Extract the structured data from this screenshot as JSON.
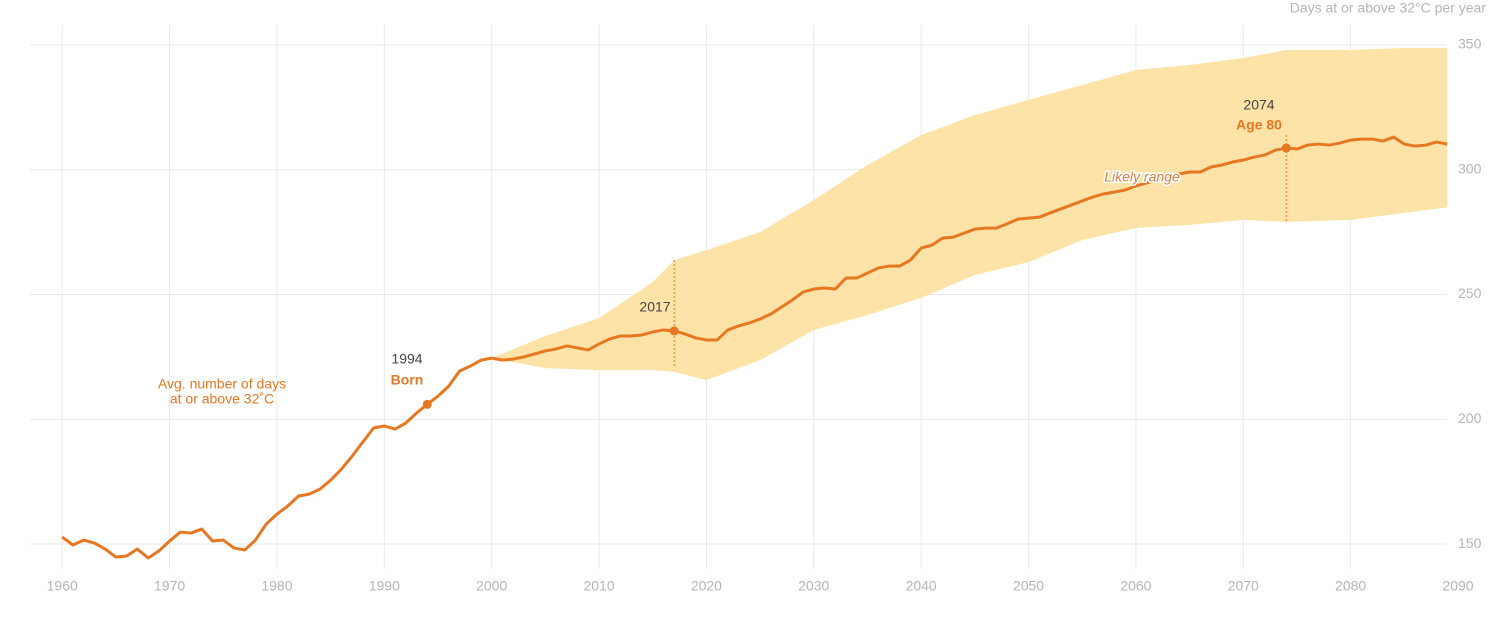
{
  "chart_data": {
    "type": "line",
    "y_axis_label": "Days at or above 32°C per year",
    "x": [
      1960,
      1961,
      1962,
      1963,
      1964,
      1965,
      1966,
      1967,
      1968,
      1969,
      1970,
      1971,
      1972,
      1973,
      1974,
      1975,
      1976,
      1977,
      1978,
      1979,
      1980,
      1981,
      1982,
      1983,
      1984,
      1985,
      1986,
      1987,
      1988,
      1989,
      1990,
      1991,
      1992,
      1993,
      1994,
      1995,
      1996,
      1997,
      1998,
      1999,
      2000,
      2001,
      2002,
      2003,
      2004,
      2005,
      2006,
      2007,
      2008,
      2009,
      2010,
      2011,
      2012,
      2013,
      2014,
      2015,
      2016,
      2017,
      2018,
      2019,
      2020,
      2021,
      2022,
      2023,
      2024,
      2025,
      2026,
      2027,
      2028,
      2029,
      2030,
      2031,
      2032,
      2033,
      2034,
      2035,
      2036,
      2037,
      2038,
      2039,
      2040,
      2041,
      2042,
      2043,
      2044,
      2045,
      2046,
      2047,
      2048,
      2049,
      2050,
      2051,
      2052,
      2053,
      2054,
      2055,
      2056,
      2057,
      2058,
      2059,
      2060,
      2061,
      2062,
      2063,
      2064,
      2065,
      2066,
      2067,
      2068,
      2069,
      2070,
      2071,
      2072,
      2073,
      2074,
      2075,
      2076,
      2077,
      2078,
      2079,
      2080,
      2081,
      2082,
      2083,
      2084,
      2085,
      2086,
      2087,
      2088,
      2089
    ],
    "series": [
      {
        "name": "Avg. number of days at or above 32°C",
        "color": "#e87722",
        "values": [
          152.8,
          149.6,
          151.6,
          150.4,
          148,
          144.8,
          145.2,
          148,
          144.4,
          147.2,
          151.2,
          154.8,
          154.4,
          156,
          151.2,
          151.6,
          148.4,
          147.6,
          151.6,
          158,
          162,
          165.2,
          169.2,
          170,
          172,
          175.6,
          180,
          185.2,
          190.9,
          196.5,
          197.3,
          196.1,
          198.5,
          202.5,
          206,
          209.3,
          213.3,
          219.3,
          221.3,
          223.7,
          224.5,
          223.7,
          224.1,
          225,
          226.2,
          227.4,
          228.2,
          229.4,
          228.6,
          227.8,
          230.2,
          232.2,
          233.4,
          233.4,
          233.8,
          235,
          235.8,
          235.4,
          234.2,
          232.6,
          231.8,
          231.8,
          235.8,
          237.4,
          238.6,
          240.2,
          242.2,
          245,
          247.8,
          251,
          252.2,
          252.6,
          252.2,
          256.6,
          256.6,
          258.6,
          260.6,
          261.4,
          261.4,
          263.8,
          268.6,
          269.8,
          272.6,
          273,
          274.6,
          276.2,
          276.6,
          276.6,
          278.3,
          280.2,
          280.6,
          281,
          282.7,
          284.3,
          285.9,
          287.5,
          289.1,
          290.3,
          291.1,
          291.9,
          293.5,
          294.7,
          295.9,
          296.7,
          298.3,
          299.1,
          299.1,
          301.1,
          301.9,
          303.1,
          303.9,
          305.1,
          305.9,
          307.9,
          308.7,
          308.3,
          309.9,
          310.3,
          309.9,
          310.7,
          311.9,
          312.3,
          312.3,
          311.5,
          313.1,
          310.3,
          309.5,
          309.9,
          311.1,
          310.3
        ]
      }
    ],
    "band": {
      "name": "Likely range",
      "color": "#fde3a7",
      "x": [
        2000,
        2005,
        2010,
        2015,
        2017,
        2020,
        2025,
        2030,
        2035,
        2040,
        2045,
        2050,
        2055,
        2060,
        2065,
        2070,
        2074,
        2080,
        2085,
        2089
      ],
      "upper": [
        224.5,
        233.4,
        240.6,
        255,
        263.8,
        267.8,
        275,
        287.9,
        301.9,
        313.9,
        321.9,
        328,
        334,
        340,
        342,
        344.8,
        348,
        348,
        348.8,
        348.8
      ],
      "lower": [
        224.5,
        220.5,
        219.7,
        219.7,
        219,
        215.7,
        223.7,
        235.8,
        241.8,
        248.6,
        257.8,
        263,
        271.8,
        276.7,
        277.9,
        279.9,
        279.1,
        279.9,
        282.7,
        285
      ]
    },
    "annotations": [
      {
        "x": 1994,
        "labels": [
          "1994",
          "Born"
        ]
      },
      {
        "x": 2017,
        "labels": [
          "2017"
        ]
      },
      {
        "x": 2074,
        "labels": [
          "2074",
          "Age 80"
        ]
      }
    ],
    "series_label": [
      "Avg. number of days",
      "at or above 32˚C"
    ],
    "xlim": [
      1957,
      2090
    ],
    "ylim": [
      140,
      360
    ],
    "xticks": [
      1960,
      1970,
      1980,
      1990,
      2000,
      2010,
      2020,
      2030,
      2040,
      2050,
      2060,
      2070,
      2080,
      2090
    ],
    "yticks": [
      150,
      200,
      250,
      300,
      350
    ],
    "grid": true
  }
}
